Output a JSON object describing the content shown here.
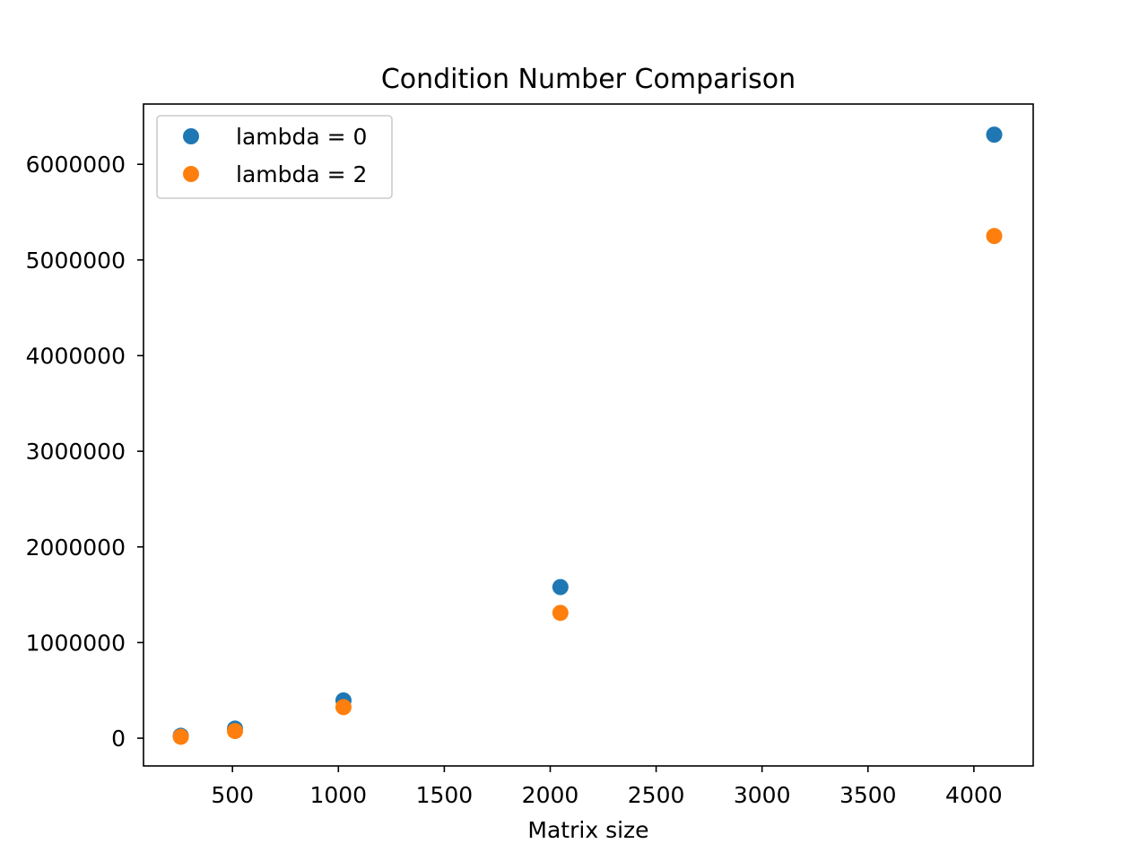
{
  "chart_data": {
    "type": "scatter",
    "title": "Condition Number Comparison",
    "xlabel": "Matrix size",
    "ylabel": "",
    "xlim": [
      80,
      4280
    ],
    "ylim": [
      -290000,
      6630000
    ],
    "x_ticks": [
      500,
      1000,
      1500,
      2000,
      2500,
      3000,
      3500,
      4000
    ],
    "x_tick_labels": [
      "500",
      "1000",
      "1500",
      "2000",
      "2500",
      "3000",
      "3500",
      "4000"
    ],
    "y_ticks": [
      0,
      1000000,
      2000000,
      3000000,
      4000000,
      5000000,
      6000000
    ],
    "y_tick_labels": [
      "0",
      "1000000",
      "2000000",
      "3000000",
      "4000000",
      "5000000",
      "6000000"
    ],
    "grid": false,
    "legend_position": "top-left",
    "series": [
      {
        "name": "lambda = 0",
        "color": "#1f77b4",
        "points": [
          {
            "x": 256,
            "y": 25000
          },
          {
            "x": 512,
            "y": 100000
          },
          {
            "x": 1024,
            "y": 395000
          },
          {
            "x": 2048,
            "y": 1580000
          },
          {
            "x": 4096,
            "y": 6310000
          }
        ]
      },
      {
        "name": "lambda = 2",
        "color": "#ff7f0e",
        "points": [
          {
            "x": 256,
            "y": 15000
          },
          {
            "x": 512,
            "y": 75000
          },
          {
            "x": 1024,
            "y": 325000
          },
          {
            "x": 2048,
            "y": 1310000
          },
          {
            "x": 4096,
            "y": 5250000
          }
        ]
      }
    ]
  }
}
